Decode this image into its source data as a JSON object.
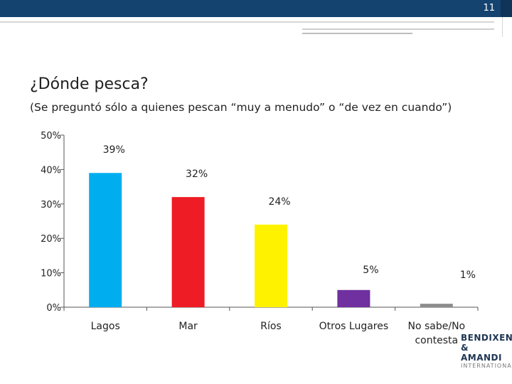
{
  "slide": {
    "number": "11"
  },
  "title": "¿Dónde pesca?",
  "subtitle": "(Se preguntó sólo a quienes pescan “muy a menudo” o “de vez en cuando”)",
  "chart_data": {
    "type": "bar",
    "categories": [
      "Lagos",
      "Mar",
      "Ríos",
      "Otros Lugares",
      "No sabe/No contesta"
    ],
    "values": [
      39,
      32,
      24,
      5,
      1
    ],
    "data_labels": [
      "39%",
      "32%",
      "24%",
      "5%",
      "1%"
    ],
    "colors": [
      "#00aeef",
      "#ee1c24",
      "#fff200",
      "#7030a0",
      "#8c8c8c"
    ],
    "yticks": [
      "0%",
      "10%",
      "20%",
      "30%",
      "40%",
      "50%"
    ],
    "ylim": [
      0,
      50
    ],
    "grid": false,
    "legend": "none"
  },
  "logo": {
    "line1": "BENDIXEN",
    "line2": "& AMANDI",
    "line3": "INTERNATIONAL"
  }
}
